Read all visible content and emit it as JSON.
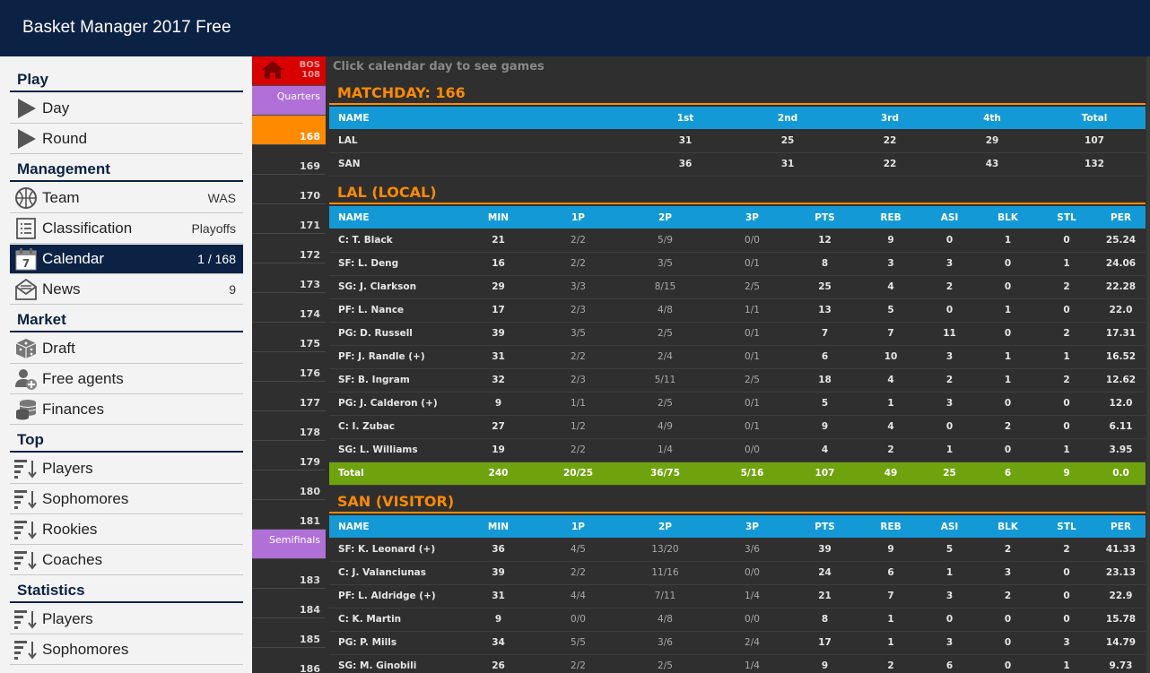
{
  "app": {
    "title": "Basket Manager 2017 Free"
  },
  "sidebar": {
    "sections": [
      {
        "title": "Play",
        "items": [
          {
            "label": "Day",
            "icon": "play-icon",
            "value": ""
          },
          {
            "label": "Round",
            "icon": "play-icon",
            "value": ""
          }
        ]
      },
      {
        "title": "Management",
        "items": [
          {
            "label": "Team",
            "icon": "basketball-icon",
            "value": "WAS"
          },
          {
            "label": "Classification",
            "icon": "list-icon",
            "value": "Playoffs"
          },
          {
            "label": "Calendar",
            "icon": "calendar-icon",
            "value": "1 / 168",
            "active": true
          },
          {
            "label": "News",
            "icon": "news-icon",
            "value": "9"
          }
        ]
      },
      {
        "title": "Market",
        "items": [
          {
            "label": "Draft",
            "icon": "dice-icon",
            "value": ""
          },
          {
            "label": "Free agents",
            "icon": "add-person-icon",
            "value": ""
          },
          {
            "label": "Finances",
            "icon": "coins-icon",
            "value": ""
          }
        ]
      },
      {
        "title": "Top",
        "items": [
          {
            "label": "Players",
            "icon": "sort-desc-icon",
            "value": ""
          },
          {
            "label": "Sophomores",
            "icon": "sort-desc-icon",
            "value": ""
          },
          {
            "label": "Rookies",
            "icon": "sort-desc-icon",
            "value": ""
          },
          {
            "label": "Coaches",
            "icon": "sort-desc-icon",
            "value": ""
          }
        ]
      },
      {
        "title": "Statistics",
        "items": [
          {
            "label": "Players",
            "icon": "sort-desc-icon",
            "value": ""
          },
          {
            "label": "Sophomores",
            "icon": "sort-desc-icon",
            "value": ""
          }
        ]
      }
    ]
  },
  "strip": {
    "home": {
      "line1": "BOS",
      "line2": "108"
    },
    "cells": [
      {
        "type": "phase",
        "label": "Quarters"
      },
      {
        "type": "day",
        "label": "168",
        "selected": true
      },
      {
        "type": "day",
        "label": "169"
      },
      {
        "type": "day",
        "label": "170"
      },
      {
        "type": "day",
        "label": "171"
      },
      {
        "type": "day",
        "label": "172"
      },
      {
        "type": "day",
        "label": "173"
      },
      {
        "type": "day",
        "label": "174"
      },
      {
        "type": "day",
        "label": "175"
      },
      {
        "type": "day",
        "label": "176"
      },
      {
        "type": "day",
        "label": "177"
      },
      {
        "type": "day",
        "label": "178"
      },
      {
        "type": "day",
        "label": "179"
      },
      {
        "type": "day",
        "label": "180"
      },
      {
        "type": "day",
        "label": "181"
      },
      {
        "type": "phase",
        "label": "Semifinals"
      },
      {
        "type": "day",
        "label": "183"
      },
      {
        "type": "day",
        "label": "184"
      },
      {
        "type": "day",
        "label": "185"
      },
      {
        "type": "day",
        "label": "186"
      }
    ]
  },
  "main": {
    "hint": "Click calendar day to see games",
    "matchday_title": "MATCHDAY: 166",
    "quarters": {
      "headers": [
        "NAME",
        "1st",
        "2nd",
        "3rd",
        "4th",
        "Total"
      ],
      "rows": [
        [
          "LAL",
          "31",
          "25",
          "22",
          "29",
          "107"
        ],
        [
          "SAN",
          "36",
          "31",
          "22",
          "43",
          "132"
        ]
      ]
    },
    "stat_headers": [
      "NAME",
      "MIN",
      "1P",
      "2P",
      "3P",
      "PTS",
      "REB",
      "ASI",
      "BLK",
      "STL",
      "PER"
    ],
    "local": {
      "title": "LAL (LOCAL)",
      "rows": [
        [
          "C: T. Black",
          "21",
          "2/2",
          "5/9",
          "0/0",
          "12",
          "9",
          "0",
          "1",
          "0",
          "25.24"
        ],
        [
          "SF: L. Deng",
          "16",
          "2/2",
          "3/5",
          "0/1",
          "8",
          "3",
          "3",
          "0",
          "1",
          "24.06"
        ],
        [
          "SG: J. Clarkson",
          "29",
          "3/3",
          "8/15",
          "2/5",
          "25",
          "4",
          "2",
          "0",
          "2",
          "22.28"
        ],
        [
          "PF: L. Nance",
          "17",
          "2/3",
          "4/8",
          "1/1",
          "13",
          "5",
          "0",
          "1",
          "0",
          "22.0"
        ],
        [
          "PG: D. Russell",
          "39",
          "3/5",
          "2/5",
          "0/1",
          "7",
          "7",
          "11",
          "0",
          "2",
          "17.31"
        ],
        [
          "PF: J. Randle (+)",
          "31",
          "2/2",
          "2/4",
          "0/1",
          "6",
          "10",
          "3",
          "1",
          "1",
          "16.52"
        ],
        [
          "SF: B. Ingram",
          "32",
          "2/3",
          "5/11",
          "2/5",
          "18",
          "4",
          "2",
          "1",
          "2",
          "12.62"
        ],
        [
          "PG: J. Calderon (+)",
          "9",
          "1/1",
          "2/5",
          "0/1",
          "5",
          "1",
          "3",
          "0",
          "0",
          "12.0"
        ],
        [
          "C: I. Zubac",
          "27",
          "1/2",
          "4/9",
          "0/1",
          "9",
          "4",
          "0",
          "2",
          "0",
          "6.11"
        ],
        [
          "SG: L. Williams",
          "19",
          "2/2",
          "1/4",
          "0/0",
          "4",
          "2",
          "1",
          "0",
          "1",
          "3.95"
        ]
      ],
      "total": [
        "Total",
        "240",
        "20/25",
        "36/75",
        "5/16",
        "107",
        "49",
        "25",
        "6",
        "9",
        "0.0"
      ]
    },
    "visitor": {
      "title": "SAN (VISITOR)",
      "rows": [
        [
          "SF: K. Leonard (+)",
          "36",
          "4/5",
          "13/20",
          "3/6",
          "39",
          "9",
          "5",
          "2",
          "2",
          "41.33"
        ],
        [
          "C: J. Valanciunas",
          "39",
          "2/2",
          "11/16",
          "0/0",
          "24",
          "6",
          "1",
          "3",
          "0",
          "23.13"
        ],
        [
          "PF: L. Aldridge (+)",
          "31",
          "4/4",
          "7/11",
          "1/4",
          "21",
          "7",
          "3",
          "2",
          "0",
          "22.9"
        ],
        [
          "C: K. Martin",
          "9",
          "0/0",
          "4/8",
          "0/0",
          "8",
          "1",
          "0",
          "0",
          "0",
          "15.78"
        ],
        [
          "PG: P. Mills",
          "34",
          "5/5",
          "3/6",
          "2/4",
          "17",
          "1",
          "3",
          "0",
          "3",
          "14.79"
        ],
        [
          "SG: M. Ginobili",
          "26",
          "2/2",
          "2/5",
          "1/4",
          "9",
          "2",
          "6",
          "0",
          "1",
          "9.73"
        ]
      ]
    }
  }
}
